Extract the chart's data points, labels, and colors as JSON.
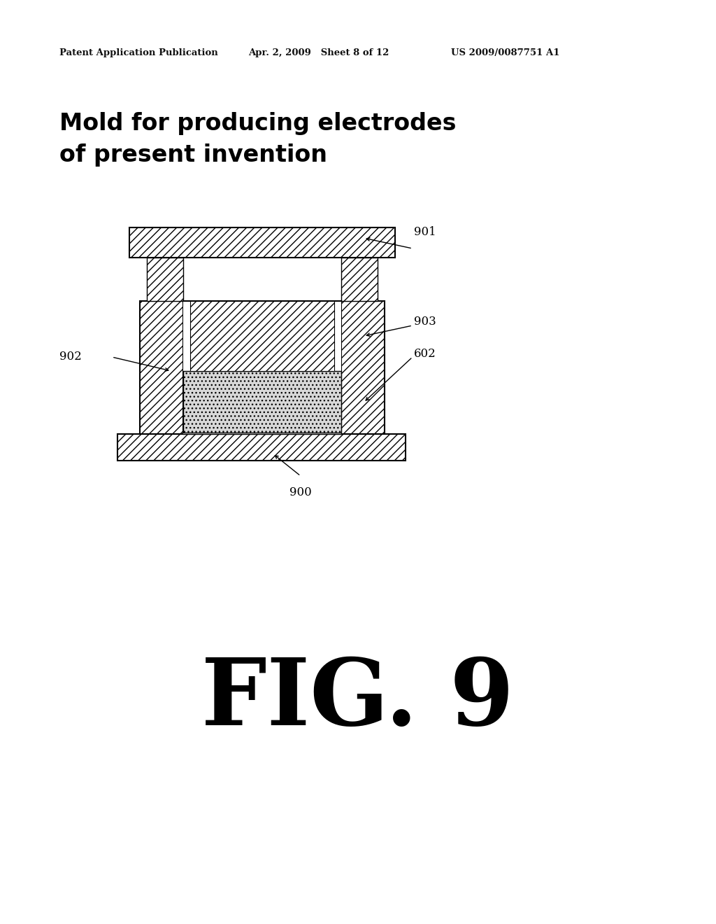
{
  "bg_color": "#ffffff",
  "header_left": "Patent Application Publication",
  "header_mid": "Apr. 2, 2009   Sheet 8 of 12",
  "header_right": "US 2009/0087751 A1",
  "title_line1": "Mold for producing electrodes",
  "title_line2": "of present invention",
  "fig_label": "FIG. 9",
  "header_fontsize": 9.5,
  "title_fontsize": 24,
  "label_fontsize": 12,
  "fig_fontsize": 95
}
